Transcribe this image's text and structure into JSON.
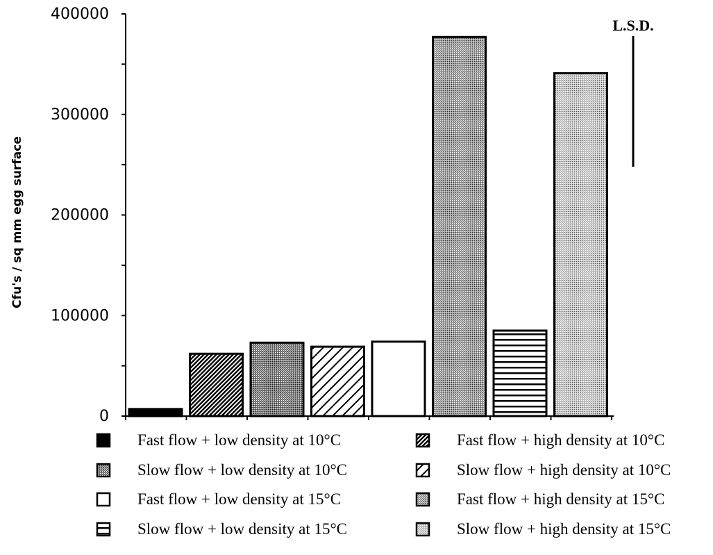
{
  "chart_data": {
    "type": "bar",
    "title": "",
    "ylabel": "Cfu's / sq mm egg surface",
    "ylim": [
      0,
      400000
    ],
    "yticks": [
      0,
      100000,
      200000,
      300000,
      400000
    ],
    "ytick_labels": [
      "0",
      "100000",
      "200000",
      "300000",
      "400000"
    ],
    "annotation": {
      "label": "L.S.D.",
      "value": 130000
    },
    "legend_position": "bottom",
    "series": [
      {
        "name": "Fast flow + low density at 10°C",
        "value": 7000,
        "pattern": "solid-black"
      },
      {
        "name": "Fast flow + high density at 10°C",
        "value": 62000,
        "pattern": "diagonal-dense"
      },
      {
        "name": "Slow flow + low density at 10°C",
        "value": 73000,
        "pattern": "stipple-dark"
      },
      {
        "name": "Slow flow + high density at 10°C",
        "value": 69000,
        "pattern": "diagonal-sparse"
      },
      {
        "name": "Fast flow + low density at 15°C",
        "value": 74000,
        "pattern": "white"
      },
      {
        "name": "Fast flow + high density at 15°C",
        "value": 377000,
        "pattern": "stipple-medium"
      },
      {
        "name": "Slow flow + low density at 15°C",
        "value": 85000,
        "pattern": "horizontal"
      },
      {
        "name": "Slow flow + high density at 15°C",
        "value": 341000,
        "pattern": "stipple-light"
      }
    ]
  }
}
